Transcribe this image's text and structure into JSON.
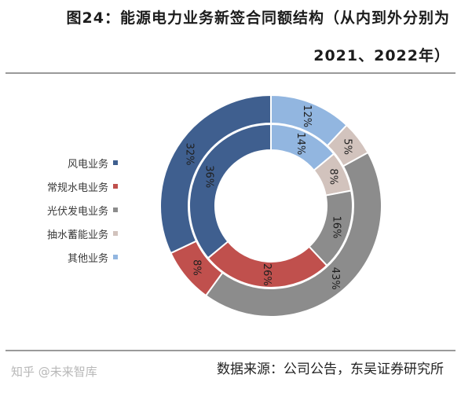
{
  "header": {
    "title_line1": "图24：能源电力业务新签合同额结构（从内到外分别为",
    "title_line2": "2021、2022年）"
  },
  "footer": {
    "source": "数据来源：公司公告，东吴证券研究所",
    "watermark": "知乎 @未来智库"
  },
  "chart_data": {
    "type": "donut",
    "title": "",
    "categories": [
      "风电业务",
      "常规水电业务",
      "光伏发电业务",
      "抽水蓄能业务",
      "其他业务"
    ],
    "colors": [
      "#3f5f8f",
      "#c0504d",
      "#8c8c8c",
      "#d2c3bd",
      "#92b6e0"
    ],
    "series": [
      {
        "name": "2021",
        "ring": "inner",
        "values": [
          36,
          26,
          16,
          8,
          14
        ]
      },
      {
        "name": "2022",
        "ring": "outer",
        "values": [
          32,
          8,
          43,
          5,
          12
        ]
      }
    ],
    "legend_placement": "left"
  }
}
